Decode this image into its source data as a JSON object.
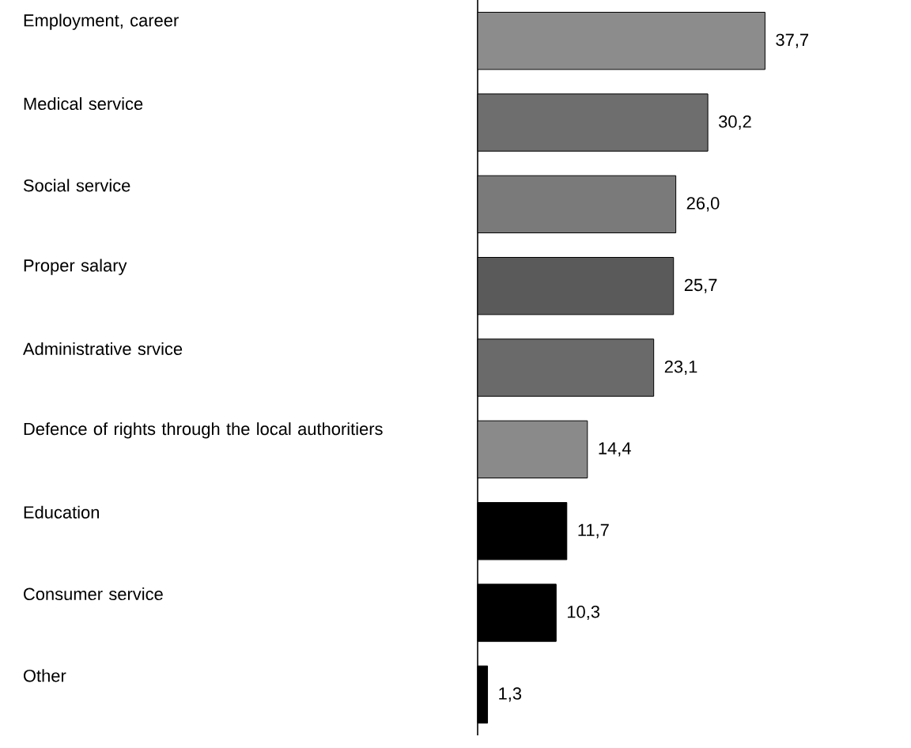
{
  "chart_data": {
    "type": "bar",
    "orientation": "horizontal",
    "categories": [
      "Employment, career",
      "Medical service",
      "Social service",
      "Proper salary",
      "Administrative srvice",
      "Defence of rights through the local authoritiers",
      "Education",
      "Consumer service",
      "Other"
    ],
    "values": [
      37.7,
      30.2,
      26.0,
      25.7,
      23.1,
      14.4,
      11.7,
      10.3,
      1.3
    ],
    "value_labels": [
      "37,7",
      "30,2",
      "26,0",
      "25,7",
      "23,1",
      "14,4",
      "11,7",
      "10,3",
      "1,3"
    ],
    "colors": [
      "#8c8c8c",
      "#6e6e6e",
      "#7a7a7a",
      "#5a5a5a",
      "#6a6a6a",
      "#8a8a8a",
      "#000000",
      "#000000",
      "#000000"
    ]
  }
}
